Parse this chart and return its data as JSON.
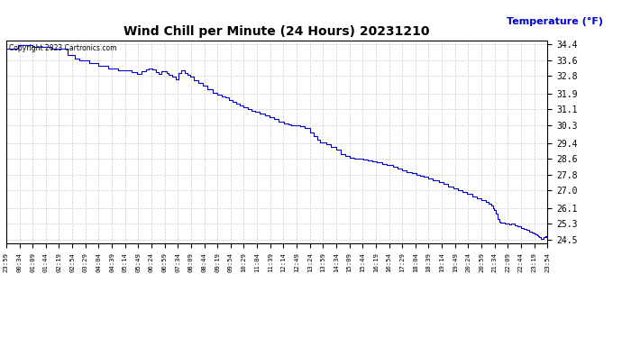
{
  "title": "Wind Chill per Minute (24 Hours) 20231210",
  "ylabel": "Temperature (°F)",
  "copyright_text": "Copyright 2023 Cartronics.com",
  "line_color": "#0000cc",
  "background_color": "#ffffff",
  "grid_color": "#cccccc",
  "yticks": [
    24.5,
    25.3,
    26.1,
    27.0,
    27.8,
    28.6,
    29.4,
    30.3,
    31.1,
    31.9,
    32.8,
    33.6,
    34.4
  ],
  "ylim": [
    24.3,
    34.6
  ],
  "xtick_labels": [
    "23:59",
    "00:34",
    "01:09",
    "01:44",
    "02:19",
    "02:54",
    "03:29",
    "04:04",
    "04:39",
    "05:14",
    "05:49",
    "06:24",
    "06:59",
    "07:34",
    "08:09",
    "08:44",
    "09:19",
    "09:54",
    "10:29",
    "11:04",
    "11:39",
    "12:14",
    "12:49",
    "13:24",
    "13:59",
    "14:34",
    "15:09",
    "15:44",
    "16:19",
    "16:54",
    "17:29",
    "18:04",
    "18:39",
    "19:14",
    "19:49",
    "20:24",
    "20:59",
    "21:34",
    "22:09",
    "22:44",
    "23:19",
    "23:54"
  ],
  "data_points": [
    [
      0,
      34.2
    ],
    [
      15,
      34.2
    ],
    [
      25,
      34.35
    ],
    [
      45,
      34.35
    ],
    [
      55,
      34.3
    ],
    [
      75,
      34.3
    ],
    [
      95,
      34.2
    ],
    [
      115,
      34.2
    ],
    [
      130,
      33.85
    ],
    [
      145,
      33.7
    ],
    [
      155,
      33.6
    ],
    [
      175,
      33.45
    ],
    [
      195,
      33.3
    ],
    [
      215,
      33.2
    ],
    [
      235,
      33.1
    ],
    [
      255,
      33.1
    ],
    [
      265,
      33.0
    ],
    [
      275,
      32.9
    ],
    [
      285,
      33.05
    ],
    [
      295,
      33.15
    ],
    [
      300,
      33.2
    ],
    [
      308,
      33.15
    ],
    [
      315,
      33.0
    ],
    [
      322,
      32.9
    ],
    [
      328,
      33.05
    ],
    [
      333,
      33.05
    ],
    [
      338,
      32.95
    ],
    [
      343,
      32.85
    ],
    [
      350,
      32.75
    ],
    [
      358,
      32.65
    ],
    [
      363,
      32.95
    ],
    [
      368,
      33.1
    ],
    [
      372,
      33.1
    ],
    [
      377,
      32.95
    ],
    [
      382,
      32.85
    ],
    [
      387,
      32.75
    ],
    [
      395,
      32.6
    ],
    [
      405,
      32.45
    ],
    [
      415,
      32.3
    ],
    [
      425,
      32.15
    ],
    [
      435,
      31.95
    ],
    [
      445,
      31.85
    ],
    [
      455,
      31.75
    ],
    [
      462,
      31.7
    ],
    [
      470,
      31.6
    ],
    [
      478,
      31.5
    ],
    [
      485,
      31.4
    ],
    [
      492,
      31.3
    ],
    [
      500,
      31.2
    ],
    [
      510,
      31.1
    ],
    [
      518,
      31.05
    ],
    [
      525,
      31.0
    ],
    [
      535,
      30.9
    ],
    [
      545,
      30.8
    ],
    [
      555,
      30.7
    ],
    [
      565,
      30.6
    ],
    [
      575,
      30.5
    ],
    [
      585,
      30.4
    ],
    [
      595,
      30.35
    ],
    [
      600,
      30.3
    ],
    [
      610,
      30.3
    ],
    [
      620,
      30.25
    ],
    [
      630,
      30.15
    ],
    [
      640,
      29.95
    ],
    [
      648,
      29.75
    ],
    [
      655,
      29.55
    ],
    [
      662,
      29.45
    ],
    [
      670,
      29.45
    ],
    [
      675,
      29.35
    ],
    [
      685,
      29.2
    ],
    [
      695,
      29.05
    ],
    [
      705,
      28.85
    ],
    [
      715,
      28.75
    ],
    [
      725,
      28.65
    ],
    [
      733,
      28.6
    ],
    [
      742,
      28.6
    ],
    [
      752,
      28.55
    ],
    [
      762,
      28.5
    ],
    [
      772,
      28.45
    ],
    [
      782,
      28.4
    ],
    [
      792,
      28.35
    ],
    [
      802,
      28.3
    ],
    [
      815,
      28.2
    ],
    [
      825,
      28.1
    ],
    [
      835,
      28.0
    ],
    [
      845,
      27.9
    ],
    [
      855,
      27.85
    ],
    [
      865,
      27.8
    ],
    [
      872,
      27.75
    ],
    [
      880,
      27.7
    ],
    [
      890,
      27.6
    ],
    [
      900,
      27.5
    ],
    [
      912,
      27.4
    ],
    [
      922,
      27.3
    ],
    [
      932,
      27.2
    ],
    [
      942,
      27.1
    ],
    [
      952,
      27.0
    ],
    [
      962,
      26.9
    ],
    [
      972,
      26.8
    ],
    [
      982,
      26.7
    ],
    [
      992,
      26.6
    ],
    [
      1002,
      26.5
    ],
    [
      1012,
      26.4
    ],
    [
      1018,
      26.3
    ],
    [
      1022,
      26.2
    ],
    [
      1026,
      26.1
    ],
    [
      1029,
      26.0
    ],
    [
      1032,
      25.8
    ],
    [
      1036,
      25.55
    ],
    [
      1039,
      25.4
    ],
    [
      1042,
      25.35
    ],
    [
      1052,
      25.3
    ],
    [
      1060,
      25.25
    ],
    [
      1064,
      25.3
    ],
    [
      1068,
      25.3
    ],
    [
      1072,
      25.2
    ],
    [
      1078,
      25.15
    ],
    [
      1085,
      25.1
    ],
    [
      1092,
      25.05
    ],
    [
      1096,
      25.0
    ],
    [
      1102,
      24.9
    ],
    [
      1108,
      24.85
    ],
    [
      1112,
      24.8
    ],
    [
      1116,
      24.75
    ],
    [
      1119,
      24.7
    ],
    [
      1121,
      24.65
    ],
    [
      1123,
      24.6
    ],
    [
      1127,
      24.55
    ],
    [
      1131,
      24.55
    ],
    [
      1133,
      24.6
    ],
    [
      1136,
      24.65
    ],
    [
      1139,
      24.6
    ],
    [
      1141,
      24.5
    ]
  ]
}
